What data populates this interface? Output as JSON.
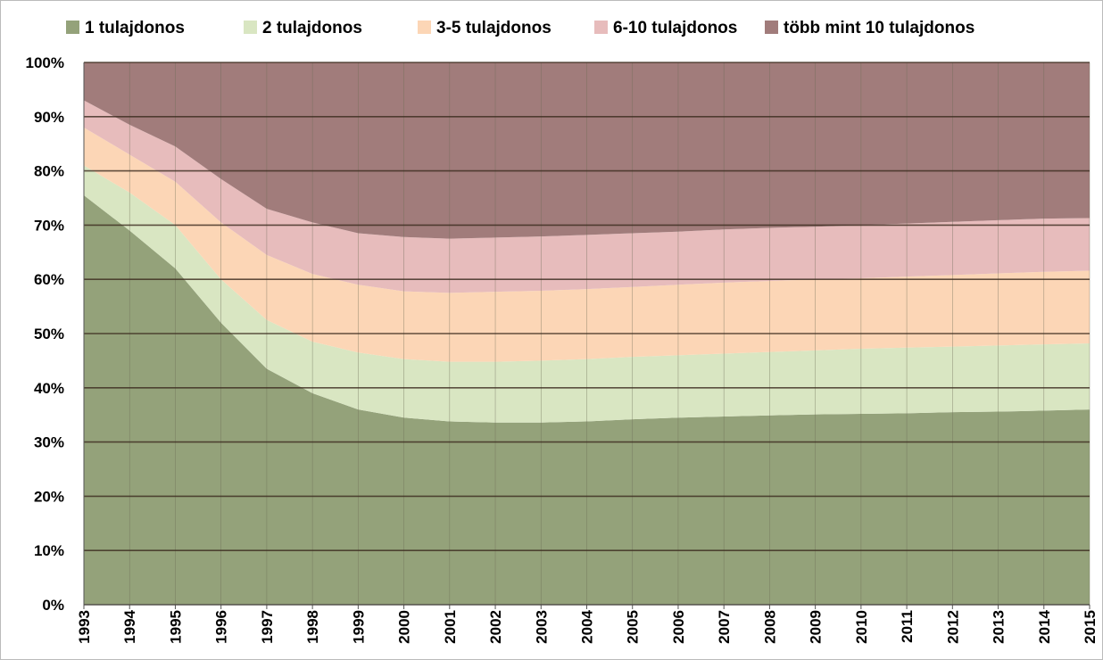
{
  "chart_data": {
    "type": "stacked_area",
    "categories": [
      "1993",
      "1994",
      "1995",
      "1996",
      "1997",
      "1998",
      "1999",
      "2000",
      "2001",
      "2002",
      "2003",
      "2004",
      "2005",
      "2006",
      "2007",
      "2008",
      "2009",
      "2010",
      "2011",
      "2012",
      "2013",
      "2014",
      "2015"
    ],
    "series": [
      {
        "name": "1 tulajdonos",
        "color": "#94a27a",
        "values": [
          75.5,
          69,
          62,
          52,
          43.5,
          39,
          36,
          34.5,
          33.8,
          33.6,
          33.6,
          33.8,
          34.2,
          34.5,
          34.7,
          34.9,
          35.1,
          35.2,
          35.3,
          35.5,
          35.6,
          35.8,
          36
        ]
      },
      {
        "name": "2 tulajdonos",
        "color": "#d9e6c2",
        "values": [
          5.5,
          7,
          8,
          8,
          9,
          9.5,
          10.5,
          10.8,
          11,
          11.2,
          11.4,
          11.5,
          11.5,
          11.5,
          11.6,
          11.7,
          11.8,
          12,
          12.1,
          12.1,
          12.2,
          12.2,
          12.2
        ]
      },
      {
        "name": "3-5 tulajdonos",
        "color": "#fcd6b6",
        "values": [
          7,
          7,
          8,
          10.5,
          12,
          12.5,
          12.5,
          12.5,
          12.7,
          12.9,
          12.9,
          12.9,
          12.9,
          13,
          13.1,
          13.1,
          13.1,
          13,
          13.1,
          13.2,
          13.3,
          13.4,
          13.4
        ]
      },
      {
        "name": "6-10 tulajdonos",
        "color": "#e7bcbc",
        "values": [
          5,
          5.5,
          6.5,
          8,
          8.5,
          9.5,
          9.5,
          10,
          10,
          10,
          10,
          10,
          9.9,
          9.8,
          9.8,
          9.8,
          9.7,
          9.8,
          9.8,
          9.8,
          9.8,
          9.8,
          9.7
        ]
      },
      {
        "name": "több mint 10 tulajdonos",
        "color": "#a17c7b",
        "values": [
          7,
          11.5,
          15.5,
          21.5,
          27,
          29.5,
          31.5,
          32.2,
          32.5,
          32.3,
          32.1,
          31.8,
          31.5,
          31.2,
          30.8,
          30.5,
          30.3,
          30,
          29.7,
          29.4,
          29.1,
          28.8,
          28.7
        ]
      }
    ],
    "ylim": [
      0,
      100
    ],
    "yticks": [
      {
        "value": 0,
        "label": "0%"
      },
      {
        "value": 10,
        "label": "10%"
      },
      {
        "value": 20,
        "label": "20%"
      },
      {
        "value": 30,
        "label": "30%"
      },
      {
        "value": 40,
        "label": "40%"
      },
      {
        "value": 50,
        "label": "50%"
      },
      {
        "value": 60,
        "label": "60%"
      },
      {
        "value": 70,
        "label": "70%"
      },
      {
        "value": 80,
        "label": "80%"
      },
      {
        "value": 90,
        "label": "90%"
      },
      {
        "value": 100,
        "label": "100%"
      }
    ],
    "grid": true,
    "legend": "top"
  }
}
